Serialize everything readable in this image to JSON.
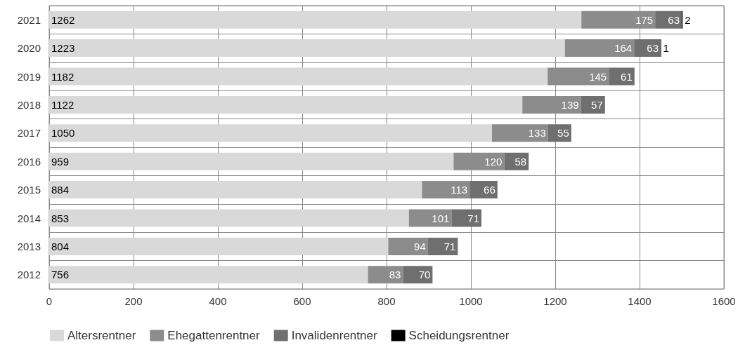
{
  "chart_data": {
    "type": "bar",
    "orientation": "horizontal",
    "stacked": true,
    "categories": [
      "2021",
      "2020",
      "2019",
      "2018",
      "2017",
      "2016",
      "2015",
      "2014",
      "2013",
      "2012"
    ],
    "series": [
      {
        "name": "Altersrentner",
        "color": "#d9d9d9",
        "values": [
          1262,
          1223,
          1182,
          1122,
          1050,
          959,
          884,
          853,
          804,
          756
        ]
      },
      {
        "name": "Ehegattenrentner",
        "color": "#8c8c8c",
        "values": [
          175,
          164,
          145,
          139,
          133,
          120,
          113,
          101,
          94,
          83
        ]
      },
      {
        "name": "Invalidenrentner",
        "color": "#6f6f6f",
        "values": [
          63,
          63,
          61,
          57,
          55,
          58,
          66,
          71,
          71,
          70
        ]
      },
      {
        "name": "Scheidungsrentner",
        "color": "#000000",
        "values": [
          2,
          1,
          null,
          null,
          null,
          null,
          null,
          null,
          null,
          null
        ]
      }
    ],
    "xlim": [
      0,
      1600
    ],
    "xticks": [
      0,
      200,
      400,
      600,
      800,
      1000,
      1200,
      1400,
      1600
    ],
    "grid": true,
    "legend": "bottom left",
    "data_labels": true
  }
}
